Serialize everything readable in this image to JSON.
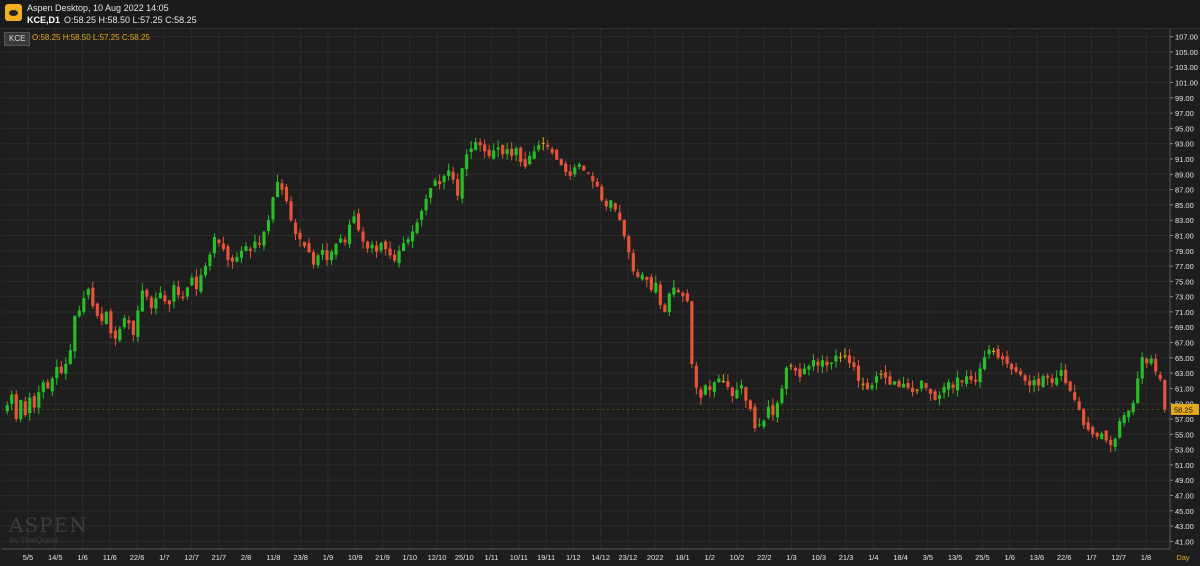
{
  "window": {
    "title": "Aspen Desktop, 10 Aug 2022 14:05",
    "symbol_tf": "KCE,D1",
    "ohlc": "O:58.25 H:58.50 L:57.25 C:58.25"
  },
  "legend": {
    "symbol": "KCE",
    "ohlc": "O:58.25  H:58.50  L:57.25  C:58.25"
  },
  "branding": {
    "logo": "ASPEN",
    "sub": "by ThaiQuest"
  },
  "colors": {
    "up": "#26c026",
    "down": "#e8543a",
    "doji": "#e2a91c",
    "grid": "#2c2c2c",
    "price_tag": "#e2a91c"
  },
  "chart_data": {
    "type": "candlestick",
    "symbol": "KCE",
    "timeframe": "D1",
    "ylim": [
      40,
      108
    ],
    "y_ticks": [
      "107.00",
      "105.00",
      "103.00",
      "101.00",
      "99.00",
      "97.00",
      "95.00",
      "93.00",
      "91.00",
      "89.00",
      "87.00",
      "85.00",
      "83.00",
      "81.00",
      "79.00",
      "77.00",
      "75.00",
      "73.00",
      "71.00",
      "69.00",
      "67.00",
      "65.00",
      "63.00",
      "61.00",
      "59.00",
      "57.00",
      "55.00",
      "53.00",
      "51.00",
      "49.00",
      "47.00",
      "45.00",
      "43.00",
      "41.00"
    ],
    "x_ticks": [
      "5/5",
      "14/5",
      "1/6",
      "11/6",
      "22/6",
      "1/7",
      "12/7",
      "21/7",
      "2/8",
      "11/8",
      "23/8",
      "1/9",
      "10/9",
      "21/9",
      "1/10",
      "12/10",
      "25/10",
      "1/11",
      "10/11",
      "19/11",
      "1/12",
      "14/12",
      "23/12",
      "2022",
      "18/1",
      "1/2",
      "10/2",
      "22/2",
      "1/3",
      "10/3",
      "21/3",
      "1/4",
      "18/4",
      "3/5",
      "13/5",
      "25/5",
      "1/6",
      "13/6",
      "22/6",
      "1/7",
      "12/7",
      "1/8"
    ],
    "x_unit": "Day",
    "last_price": "58.25",
    "series": [
      {
        "label": "5/5",
        "values": [
          58.8,
          60.2,
          57.0,
          59.5,
          57.5,
          59.8,
          58.5,
          60.5,
          61.8,
          61.0,
          62.3,
          63.8,
          63.0,
          64.2
        ]
      },
      {
        "label": "1/6",
        "values": [
          66.0,
          70.5,
          71.2,
          72.8,
          74.0,
          71.8,
          70.5,
          69.8,
          71.0,
          68.2,
          67.5,
          68.8,
          70.2,
          69.5,
          68.0,
          71.2,
          73.8,
          73.0,
          71.5,
          72.8
        ]
      },
      {
        "label": "1/7",
        "values": [
          73.5,
          72.4,
          72.0,
          74.5,
          73.2,
          72.8,
          74.2,
          75.5,
          74.0,
          75.8,
          77.0
        ]
      },
      {
        "label": "2/8",
        "values": [
          78.5,
          80.8,
          80.0,
          79.2,
          77.8,
          77.6,
          78.2,
          79.0,
          79.6,
          79.0,
          80.2,
          79.8,
          81.5,
          83.0,
          86.0,
          88.0,
          87.0,
          85.5
        ]
      },
      {
        "label": "23/8",
        "values": [
          83.0,
          81.2,
          80.5,
          79.6,
          78.8,
          77.2,
          78.4,
          79.1,
          77.8,
          78.9,
          79.9,
          80.6,
          80.1,
          82.4,
          83.5,
          81.7,
          80.2
        ]
      },
      {
        "label": "1/10",
        "values": [
          79.3,
          79.8,
          78.9,
          80.0,
          79.2,
          78.4,
          77.7,
          79.0,
          80.0,
          80.5,
          81.5,
          82.7,
          84.2,
          85.8,
          87.2,
          88.2,
          87.7,
          88.8,
          89.5,
          88.3,
          86.2,
          89.8,
          91.6,
          92.4,
          93.2
        ]
      },
      {
        "label": "19/11",
        "values": [
          92.8,
          92.0,
          91.4,
          92.1,
          92.5,
          91.6,
          92.3,
          91.4,
          92.4,
          90.6,
          90.0,
          91.4,
          92.0,
          92.8,
          93.0,
          92.6,
          91.8,
          90.9,
          90.2,
          89.3,
          88.8,
          89.9,
          90.3,
          89.5,
          89.1,
          88.1,
          87.4
        ]
      },
      {
        "label": "2022",
        "values": [
          85.6,
          84.8,
          85.6,
          84.4,
          83.0,
          80.9,
          78.8,
          76.3,
          75.6,
          75.9,
          75.2,
          73.9,
          74.8,
          71.9,
          71.0,
          73.4,
          74.2,
          73.6,
          73.1,
          72.4
        ]
      },
      {
        "label": "1/2",
        "values": [
          64.2,
          61.1,
          59.8,
          61.4,
          60.8,
          61.8,
          62.3,
          61.9,
          61.2,
          60.0,
          60.8,
          61.4,
          59.4,
          58.3,
          55.8,
          56.3,
          56.8,
          58.6,
          57.5,
          59.1
        ]
      },
      {
        "label": "10/3",
        "values": [
          61.0,
          63.7,
          64.0,
          63.3,
          62.5,
          63.6,
          63.9,
          64.7,
          64.0,
          64.7,
          64.0,
          64.4,
          65.3,
          65.0,
          65.3,
          64.3,
          63.8,
          62.0,
          61.5,
          60.9,
          61.4,
          62.6,
          62.9,
          62.4,
          61.5
        ]
      },
      {
        "label": "18/4",
        "values": [
          61.9,
          61.2,
          61.6,
          61.1,
          60.5,
          60.8,
          62.0,
          61.1,
          60.3,
          59.5,
          60.1,
          61.2,
          61.8,
          61.1,
          62.4,
          61.8,
          62.6,
          62.1,
          61.9,
          63.6,
          65.1,
          66.1,
          65.9,
          65.0,
          64.8,
          64.2
        ]
      },
      {
        "label": "13/6",
        "values": [
          63.5,
          63.2,
          62.8,
          62.0,
          61.4,
          62.1,
          61.4,
          62.6,
          62.4,
          61.7,
          62.4,
          63.4,
          61.7,
          60.7,
          59.5,
          58.2,
          56.2,
          55.6,
          55.0,
          54.7,
          55.1,
          54.2,
          53.6,
          54.4,
          56.7,
          57.5,
          58.1,
          59.1
        ]
      },
      {
        "label": "1/8",
        "values": [
          62.3,
          65.1,
          64.3,
          64.9,
          63.2,
          62.2,
          58.25
        ]
      }
    ]
  }
}
